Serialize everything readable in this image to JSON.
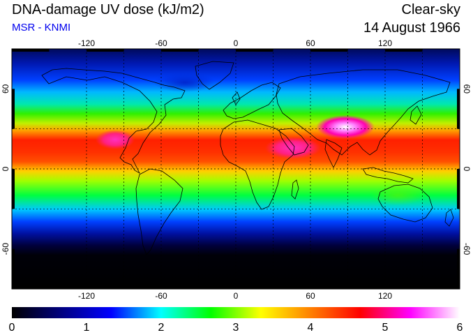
{
  "header": {
    "title": "DNA-damage UV dose (kJ/m2)",
    "source": "MSR - KNMI",
    "mode": "Clear-sky",
    "date": "14 August 1966"
  },
  "map": {
    "lon_range": [
      -180,
      180
    ],
    "lat_range": [
      -90,
      90
    ],
    "grid_lon": [
      -120,
      -90,
      -60,
      -30,
      0,
      30,
      60,
      90,
      120,
      150
    ],
    "grid_lat": [
      -30,
      0,
      30
    ],
    "lon_ticks": [
      {
        "value": -120,
        "label": "-120"
      },
      {
        "value": -60,
        "label": "-60"
      },
      {
        "value": 0,
        "label": "0"
      },
      {
        "value": 60,
        "label": "60"
      },
      {
        "value": 120,
        "label": "120"
      }
    ],
    "lat_ticks": [
      {
        "value": 60,
        "label": "60"
      },
      {
        "value": 0,
        "label": "0"
      },
      {
        "value": -60,
        "label": "-60"
      }
    ]
  },
  "colorbar": {
    "min": 0,
    "max": 6,
    "labels": [
      "0",
      "1",
      "2",
      "3",
      "4",
      "5",
      "6"
    ],
    "colors": [
      "#000000",
      "#000080",
      "#0000ff",
      "#00ffff",
      "#00ff00",
      "#ffff00",
      "#ff8000",
      "#ff0000",
      "#ff00ff",
      "#ffffff"
    ]
  }
}
